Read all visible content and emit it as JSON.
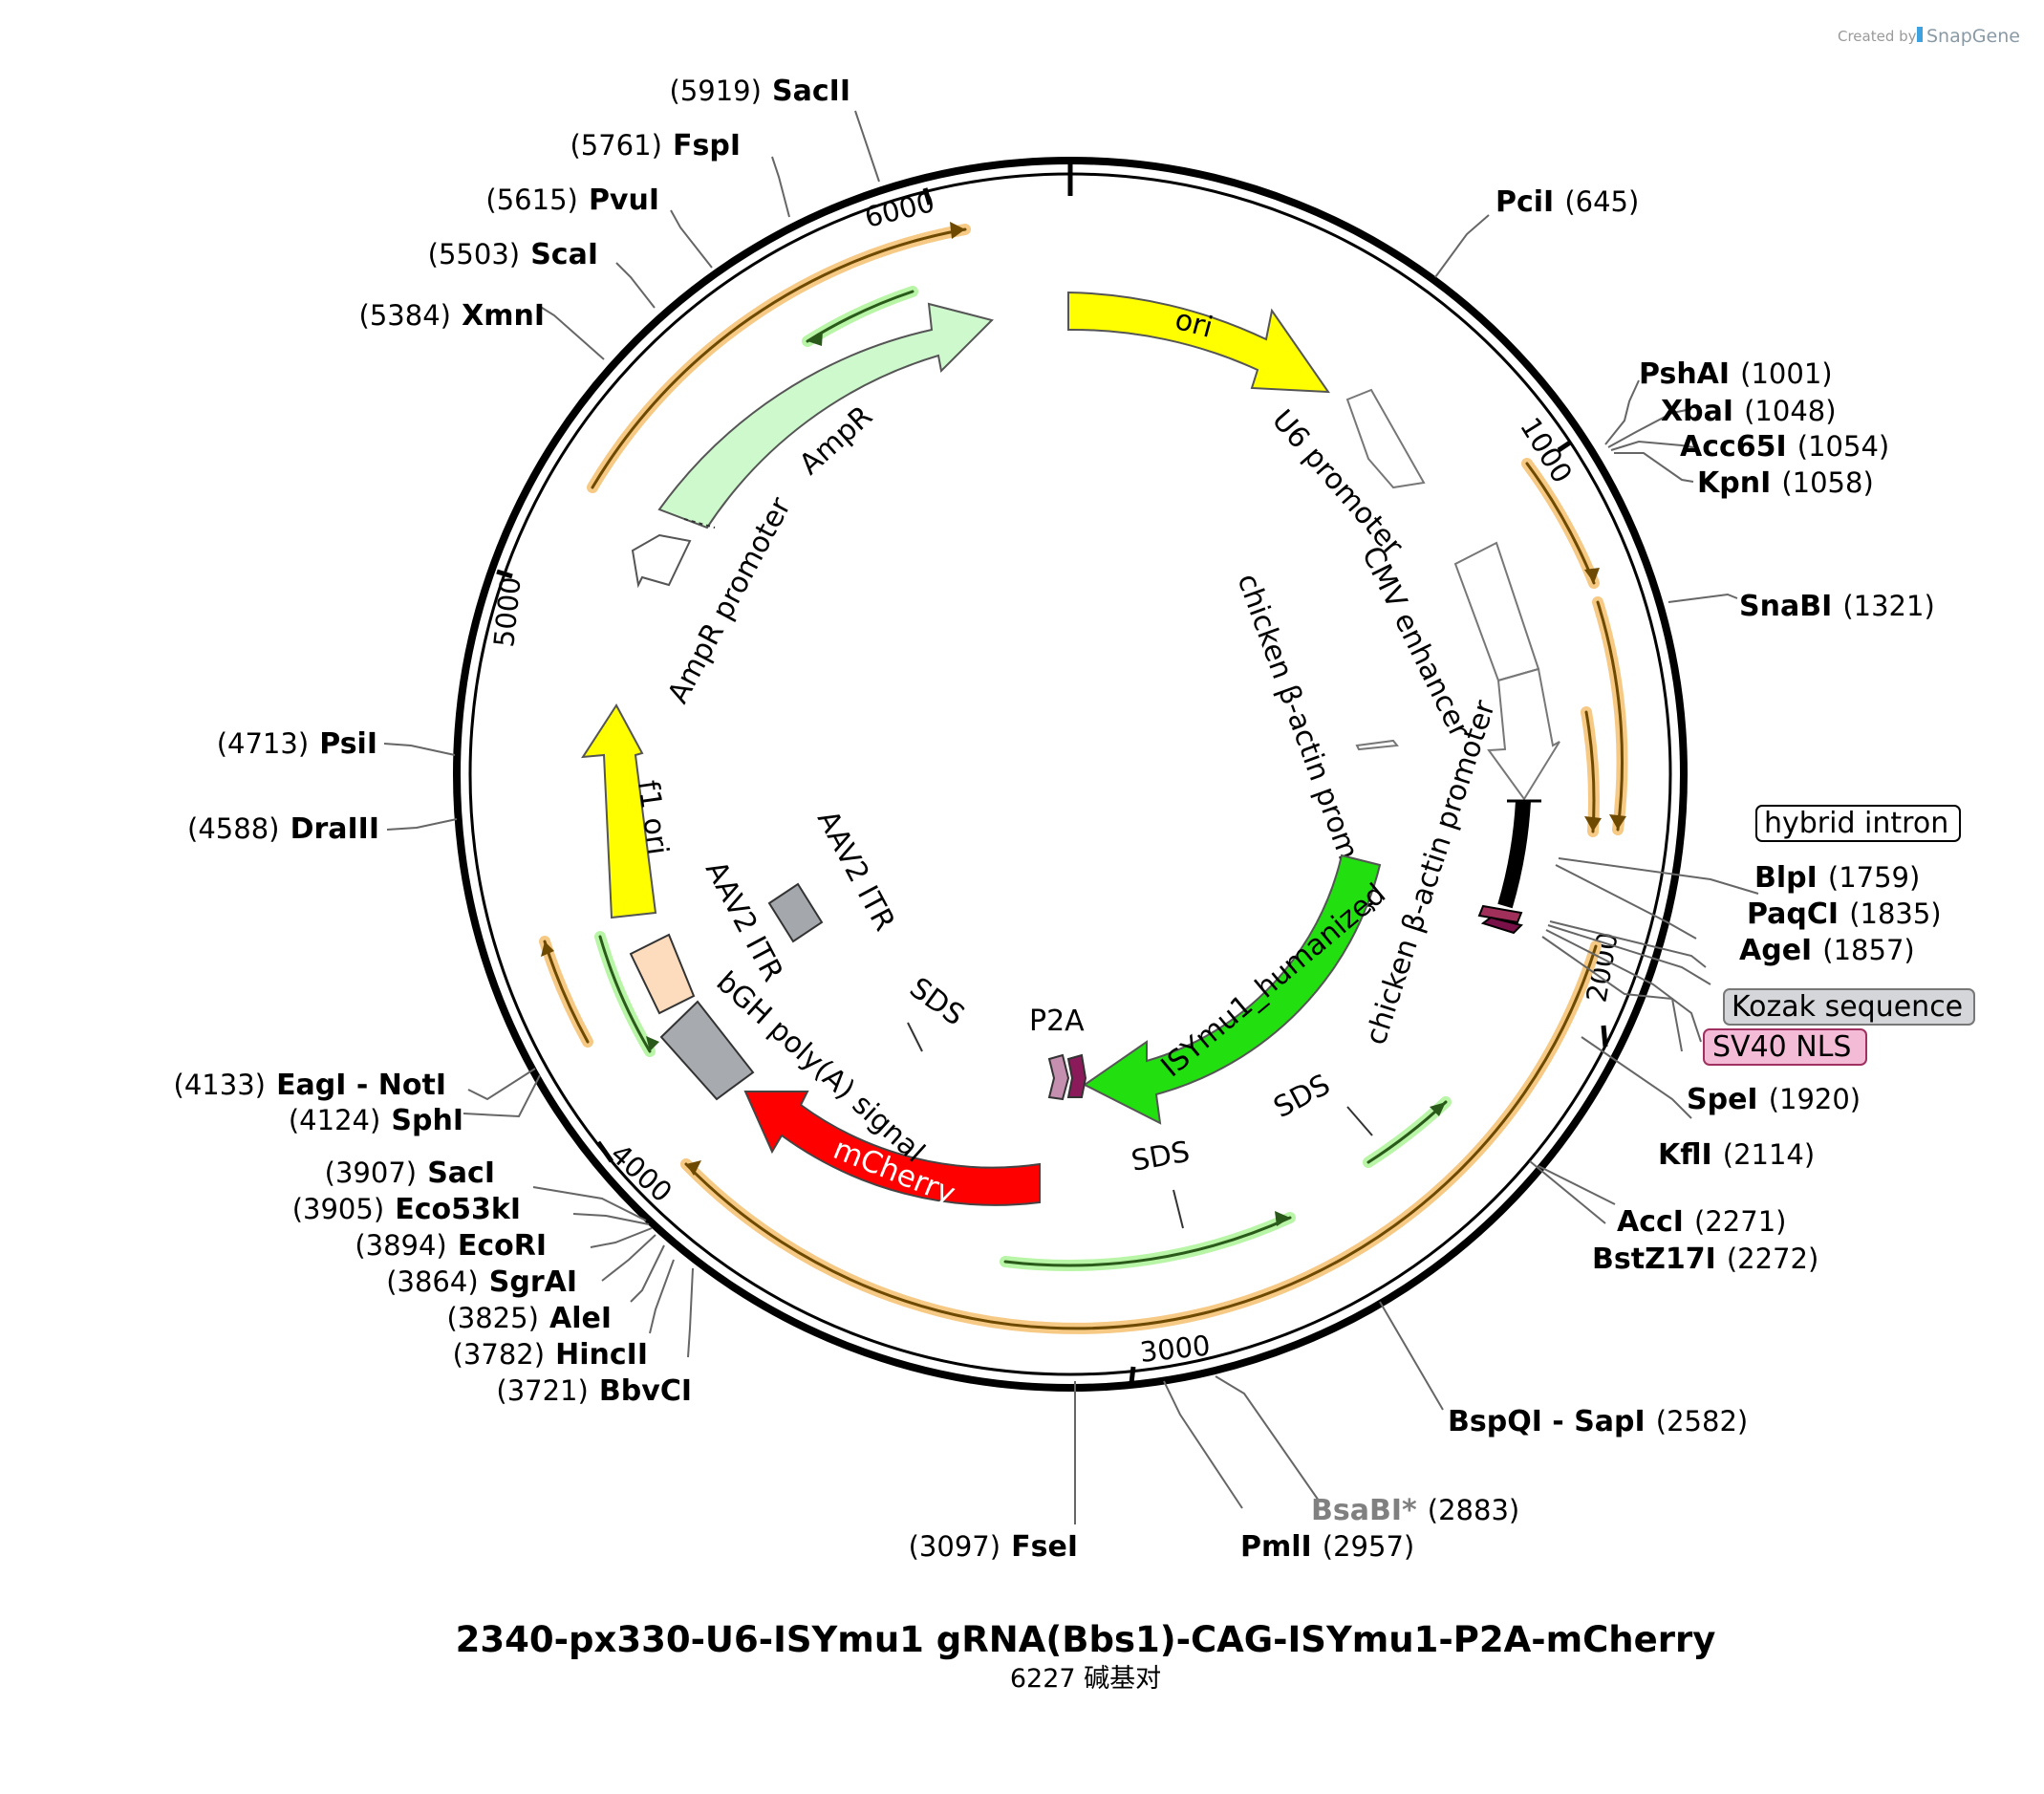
{
  "title": "2340-px330-U6-ISYmu1 gRNA(Bbs1)-CAG-ISYmu1-P2A-mCherry",
  "subtitle": "6227 碱基对",
  "credit": {
    "prefix": "Created by",
    "brand": "SnapGene"
  },
  "ticks": [
    "1000",
    "2000",
    "3000",
    "4000",
    "5000",
    "6000"
  ],
  "sites": [
    {
      "id": "pcii",
      "name": "PciI",
      "pos": "(645)"
    },
    {
      "id": "pshai",
      "name": "PshAI",
      "pos": "(1001)"
    },
    {
      "id": "xbai",
      "name": "XbaI",
      "pos": "(1048)"
    },
    {
      "id": "acc65i",
      "name": "Acc65I",
      "pos": "(1054)"
    },
    {
      "id": "kpni",
      "name": "KpnI",
      "pos": "(1058)"
    },
    {
      "id": "snabi",
      "name": "SnaBI",
      "pos": "(1321)"
    },
    {
      "id": "blpi",
      "name": "BlpI",
      "pos": "(1759)"
    },
    {
      "id": "paqci",
      "name": "PaqCI",
      "pos": "(1835)"
    },
    {
      "id": "agei",
      "name": "AgeI",
      "pos": "(1857)"
    },
    {
      "id": "spei",
      "name": "SpeI",
      "pos": "(1920)"
    },
    {
      "id": "kfli",
      "name": "KflI",
      "pos": "(2114)"
    },
    {
      "id": "acci",
      "name": "AccI",
      "pos": "(2271)"
    },
    {
      "id": "bstz17i",
      "name": "BstZ17I",
      "pos": "(2272)"
    },
    {
      "id": "bspqi",
      "name": "BspQI - SapI",
      "pos": "(2582)"
    },
    {
      "id": "bsabi",
      "name": "BsaBI*",
      "pos": "(2883)"
    },
    {
      "id": "pmli",
      "name": "PmlI",
      "pos": "(2957)"
    },
    {
      "id": "fsei",
      "name": "FseI",
      "pos": "(3097)"
    },
    {
      "id": "bbvci",
      "name": "BbvCI",
      "pos": "(3721)"
    },
    {
      "id": "hincii",
      "name": "HincII",
      "pos": "(3782)"
    },
    {
      "id": "alei",
      "name": "AleI",
      "pos": "(3825)"
    },
    {
      "id": "sgrai",
      "name": "SgrAI",
      "pos": "(3864)"
    },
    {
      "id": "ecori",
      "name": "EcoRI",
      "pos": "(3894)"
    },
    {
      "id": "eco53ki",
      "name": "Eco53kI",
      "pos": "(3905)"
    },
    {
      "id": "saci",
      "name": "SacI",
      "pos": "(3907)"
    },
    {
      "id": "sphi",
      "name": "SphI",
      "pos": "(4124)"
    },
    {
      "id": "eagi",
      "name": "EagI - NotI",
      "pos": "(4133)"
    },
    {
      "id": "drai",
      "name": "DraIII",
      "pos": "(4588)"
    },
    {
      "id": "psii",
      "name": "PsiI",
      "pos": "(4713)"
    },
    {
      "id": "xmni",
      "name": "XmnI",
      "pos": "(5384)"
    },
    {
      "id": "scai",
      "name": "ScaI",
      "pos": "(5503)"
    },
    {
      "id": "pvui",
      "name": "PvuI",
      "pos": "(5615)"
    },
    {
      "id": "fspi",
      "name": "FspI",
      "pos": "(5761)"
    },
    {
      "id": "sacii",
      "name": "SacII",
      "pos": "(5919)"
    }
  ],
  "features": {
    "ori": "ori",
    "u6": "U6 promoter",
    "cmv": "CMV enhancer",
    "cba_outer": "chicken β-actin promoter",
    "cba_inner": "chicken β-actin promoter",
    "hybrid_intron": "hybrid intron",
    "kozak": "Kozak sequence",
    "sv40": "SV40 NLS",
    "isymu1": "ISYmu1_humanized",
    "p2a": "P2A",
    "mcherry": "mCherry",
    "bgh": "bGH poly(A) signal",
    "itr1": "AAV2 ITR",
    "itr2": "AAV2 ITR",
    "f1ori": "f1 ori",
    "ampr": "AmpR",
    "ampr_promoter": "AmpR promoter",
    "sds1": "SDS",
    "sds2": "SDS",
    "sds3": "SDS"
  }
}
